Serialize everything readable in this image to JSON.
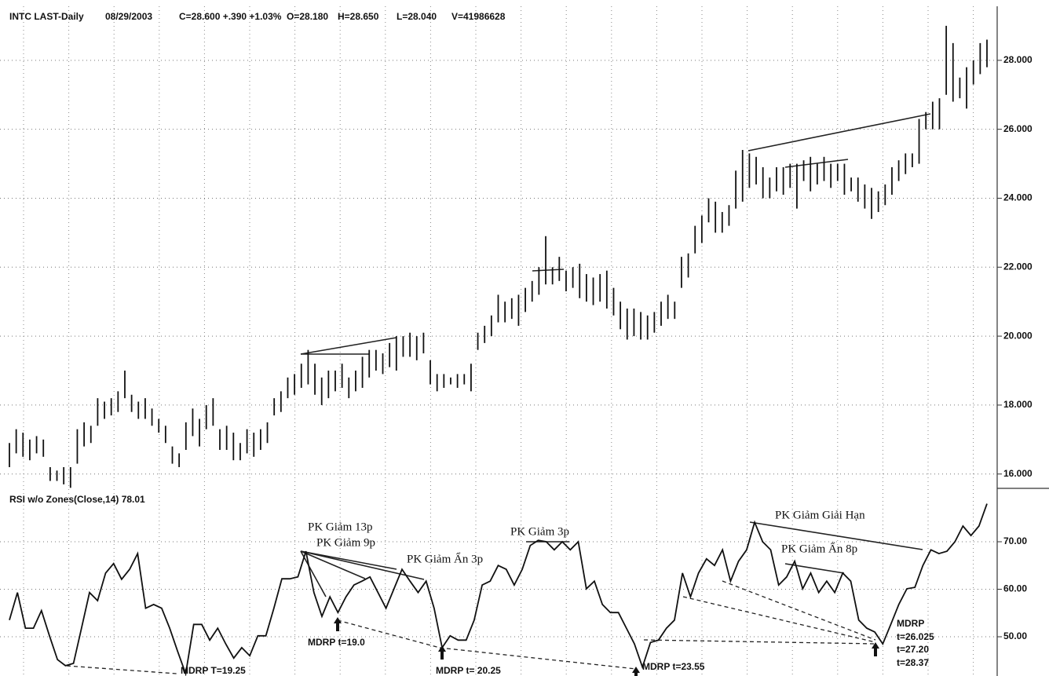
{
  "chart_data": [
    {
      "type": "ohlc",
      "title": "INTC LAST-Daily",
      "info": [
        "08/29/2003",
        "C=28.600 +.390 +1.03%",
        "O=28.180",
        "H=28.650",
        "L=28.040",
        "V=41986628"
      ],
      "low": [
        16.2,
        16.6,
        16.5,
        16.4,
        16.6,
        16.5,
        15.8,
        15.8,
        15.7,
        15.6,
        16.3,
        16.8,
        16.9,
        17.4,
        17.6,
        17.7,
        17.8,
        18.2,
        17.8,
        17.6,
        17.6,
        17.4,
        17.2,
        16.9,
        16.3,
        16.2,
        16.7,
        17.1,
        16.8,
        17.3,
        17.4,
        16.7,
        16.7,
        16.4,
        16.4,
        16.6,
        16.5,
        16.7,
        16.9,
        17.7,
        17.8,
        18.2,
        18.3,
        18.5,
        18.6,
        18.3,
        18.0,
        18.2,
        18.4,
        18.5,
        18.2,
        18.4,
        18.5,
        18.8,
        19.0,
        18.9,
        19.1,
        19.0,
        19.4,
        19.4,
        19.3,
        19.5,
        18.6,
        18.4,
        18.5,
        18.6,
        18.5,
        18.6,
        18.4,
        19.6,
        19.8,
        20.0,
        20.4,
        20.4,
        20.5,
        20.3,
        20.7,
        21.0,
        21.2,
        21.5,
        21.5,
        21.6,
        21.3,
        21.4,
        21.1,
        21.0,
        20.9,
        21.0,
        20.8,
        20.6,
        20.2,
        19.9,
        20.0,
        19.9,
        19.9,
        20.1,
        20.3,
        20.5,
        20.5,
        21.4,
        21.7,
        22.4,
        22.7,
        23.3,
        23.0,
        23.0,
        23.2,
        23.7,
        23.9,
        24.3,
        24.4,
        24.0,
        24.0,
        24.2,
        24.1,
        24.3,
        23.7,
        24.5,
        24.2,
        24.4,
        24.5,
        24.3,
        24.5,
        24.1,
        24.2,
        23.9,
        23.7,
        23.4,
        23.6,
        23.8,
        24.1,
        24.5,
        24.7,
        24.9,
        25.0,
        26.0,
        26.0,
        26.0,
        27.0,
        26.8,
        26.9,
        26.6,
        27.3,
        27.6,
        27.8
      ],
      "high": [
        16.9,
        17.3,
        17.2,
        17.0,
        17.1,
        17.0,
        16.2,
        16.1,
        16.2,
        16.2,
        17.3,
        17.5,
        17.4,
        18.2,
        18.1,
        18.2,
        18.4,
        19.0,
        18.3,
        18.1,
        18.2,
        17.9,
        17.6,
        17.4,
        16.8,
        16.6,
        17.5,
        17.9,
        17.6,
        18.0,
        18.2,
        17.3,
        17.4,
        17.2,
        16.9,
        17.3,
        17.2,
        17.3,
        17.5,
        18.2,
        18.4,
        18.8,
        18.9,
        19.2,
        19.6,
        19.2,
        18.8,
        19.0,
        19.0,
        19.2,
        18.8,
        19.0,
        19.4,
        19.6,
        19.6,
        19.5,
        19.8,
        20.0,
        20.0,
        20.1,
        20.0,
        20.1,
        19.3,
        18.9,
        18.9,
        18.8,
        18.9,
        18.9,
        19.2,
        20.1,
        20.3,
        20.6,
        21.2,
        21.0,
        21.1,
        21.2,
        21.4,
        21.6,
        22.0,
        22.9,
        22.0,
        22.3,
        21.9,
        22.0,
        22.1,
        21.8,
        21.7,
        21.8,
        21.9,
        21.4,
        21.0,
        20.8,
        20.8,
        20.7,
        20.6,
        20.7,
        21.0,
        21.2,
        21.0,
        22.3,
        22.4,
        23.2,
        23.5,
        24.0,
        23.9,
        23.6,
        23.8,
        24.8,
        25.4,
        25.3,
        25.2,
        24.9,
        24.6,
        24.9,
        24.9,
        25.0,
        25.0,
        25.1,
        25.2,
        25.0,
        25.2,
        25.0,
        25.0,
        25.0,
        24.6,
        24.6,
        24.4,
        24.3,
        24.2,
        24.4,
        24.9,
        25.1,
        25.3,
        25.3,
        26.3,
        26.5,
        26.8,
        26.9,
        29.0,
        28.5,
        27.5,
        27.8,
        28.0,
        28.5,
        28.6
      ],
      "color": "#111111",
      "ylim": [
        15.63,
        29.75
      ],
      "yticks": [
        {
          "value": 16,
          "label": "16.000"
        },
        {
          "value": 18,
          "label": "18.000"
        },
        {
          "value": 20,
          "label": "20.000"
        },
        {
          "value": 22,
          "label": "22.000"
        },
        {
          "value": 24,
          "label": "24.000"
        },
        {
          "value": 26,
          "label": "26.000"
        },
        {
          "value": 28,
          "label": "28.000"
        }
      ],
      "grid": true
    },
    {
      "type": "line",
      "title": "RSI w/o Zones(Close,14) 78.01",
      "values": [
        53.5,
        59.3,
        51.8,
        51.8,
        55.5,
        50.2,
        45.2,
        43.9,
        44.4,
        51.8,
        59.3,
        57.6,
        63.4,
        65.4,
        62.1,
        64.2,
        67.5,
        56.0,
        56.8,
        56.0,
        51.8,
        46.9,
        42.2,
        52.6,
        52.6,
        49.3,
        51.8,
        48.5,
        45.5,
        47.7,
        46.0,
        50.2,
        50.2,
        56.0,
        62.2,
        62.2,
        62.6,
        68.0,
        59.3,
        54.3,
        58.4,
        55.1,
        58.4,
        60.9,
        61.7,
        62.6,
        59.3,
        56.0,
        60.1,
        64.2,
        61.7,
        59.3,
        61.7,
        56.0,
        47.7,
        50.2,
        49.3,
        49.3,
        53.5,
        60.9,
        61.7,
        65.0,
        64.2,
        60.9,
        64.2,
        69.2,
        70.3,
        70.0,
        68.3,
        70.0,
        68.3,
        70.0,
        60.1,
        61.7,
        56.8,
        55.1,
        55.1,
        51.8,
        48.5,
        43.6,
        48.8,
        49.3,
        51.8,
        53.5,
        63.4,
        58.4,
        63.4,
        66.4,
        65.0,
        68.3,
        61.7,
        65.9,
        68.3,
        74.1,
        70.0,
        68.3,
        60.9,
        62.6,
        65.9,
        60.1,
        63.4,
        59.3,
        61.7,
        59.3,
        63.4,
        61.7,
        53.5,
        51.8,
        51.0,
        48.5,
        52.6,
        56.8,
        60.1,
        60.4,
        65.0,
        68.3,
        67.5,
        68.0,
        70.0,
        73.3,
        71.3,
        73.3,
        78.0
      ],
      "color": "#111111",
      "ylim": [
        41.74,
        80.74
      ],
      "yticks": [
        {
          "value": 50,
          "label": "50.00"
        },
        {
          "value": 60,
          "label": "60.00"
        },
        {
          "value": 70,
          "label": "70.00"
        }
      ],
      "grid": true,
      "annotations": [
        "PK Giảm 13p",
        "PK Giảm 9p",
        "PK Giảm Ẩn 3p",
        "PK Giảm 3p",
        "PK Giảm Giải Hạn",
        "PK Giảm Ẩn 8p",
        "MDRP T=19.25",
        "MDRP t=19.0",
        "MDRP t= 20.25",
        "MDRP t=23.55",
        "MDRP",
        "t=26.025",
        "t=27.20",
        "t=28.37"
      ]
    }
  ]
}
